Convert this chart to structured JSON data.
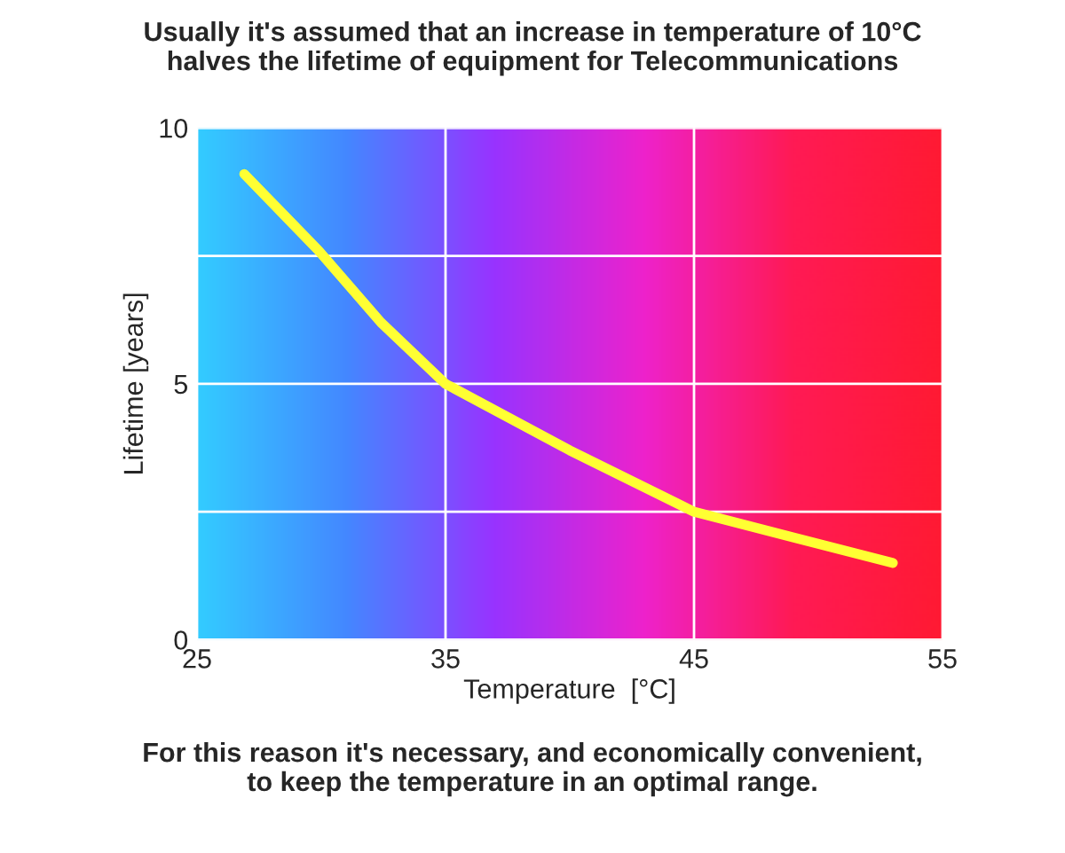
{
  "chart_data": {
    "type": "line",
    "title": "Usually it's assumed that an increase in temperature of 10°C\nhalves the lifetime of equipment for Telecommunications",
    "xlabel": "Temperature  [°C]",
    "ylabel": "Lifetime [years]",
    "annotations": [
      "For this reason it's necessary, and economically convenient,\nto keep the temperature in an optimal range."
    ],
    "x": [
      26.9,
      29.9,
      32.4,
      35,
      40,
      45,
      49,
      53
    ],
    "series": [
      {
        "color": "#ffff33",
        "values": [
          9.1,
          7.6,
          6.2,
          5.0,
          3.7,
          2.5,
          2.0,
          1.5
        ]
      }
    ],
    "xlim": [
      25,
      55
    ],
    "xticks": [
      25,
      35,
      45,
      55
    ],
    "ylim": [
      0,
      10
    ],
    "yticks": [
      0,
      {
        "value": 2.5,
        "label": null
      },
      5,
      {
        "value": 7.5,
        "label": null
      },
      10
    ],
    "grid": true,
    "legend": false,
    "marker": "none",
    "line_style": "solid"
  }
}
